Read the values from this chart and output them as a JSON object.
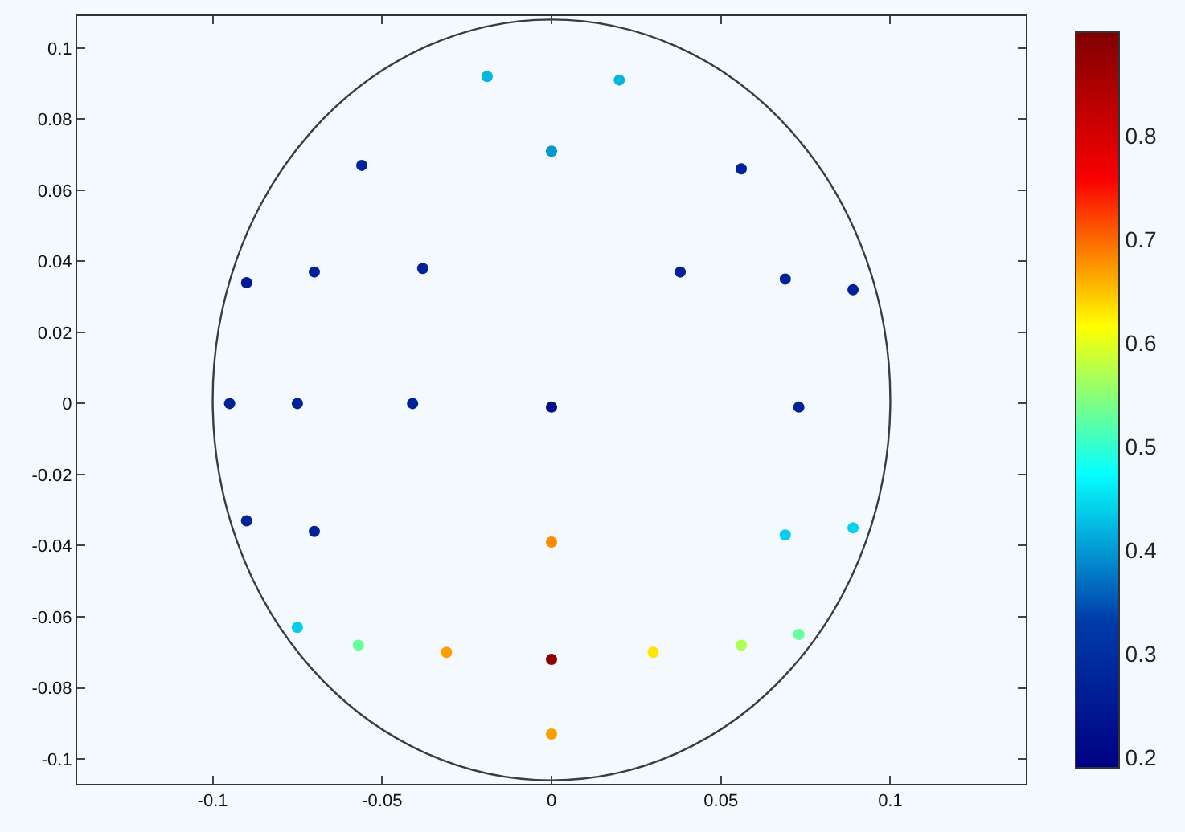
{
  "chart_data": {
    "type": "scatter",
    "xlim": [
      -0.14,
      0.14
    ],
    "ylim": [
      -0.107,
      0.109
    ],
    "xticks": [
      -0.1,
      -0.05,
      0,
      0.05,
      0.1
    ],
    "yticks": [
      -0.1,
      -0.08,
      -0.06,
      -0.04,
      -0.02,
      0,
      0.02,
      0.04,
      0.06,
      0.08,
      0.1
    ],
    "grid": false,
    "marker": "circle",
    "clim": [
      0.19,
      0.9
    ],
    "cticks": [
      0.2,
      0.3,
      0.4,
      0.5,
      0.6,
      0.7,
      0.8
    ],
    "series": [
      {
        "x": [
          -0.019,
          0.02,
          0,
          -0.056,
          0.056,
          -0.09,
          -0.07,
          -0.038,
          0.038,
          0.069,
          0.089,
          -0.095,
          -0.075,
          -0.041,
          0,
          0.073,
          -0.09,
          -0.07,
          0,
          0.069,
          0.089,
          -0.075,
          -0.057,
          -0.031,
          0,
          0.03,
          0.056,
          0.073,
          0
        ],
        "values": [
          0.092,
          0.091,
          0.071,
          0.067,
          0.066,
          0.034,
          0.037,
          0.038,
          0.037,
          0.035,
          0.032,
          0,
          0,
          0,
          -0.001,
          -0.001,
          -0.033,
          -0.036,
          -0.039,
          -0.037,
          -0.035,
          -0.063,
          -0.068,
          -0.07,
          -0.072,
          -0.07,
          -0.068,
          -0.065,
          -0.093
        ],
        "cvalues": [
          0.42,
          0.42,
          0.4,
          0.28,
          0.27,
          0.25,
          0.27,
          0.27,
          0.27,
          0.27,
          0.27,
          0.27,
          0.27,
          0.27,
          0.22,
          0.27,
          0.27,
          0.27,
          0.68,
          0.44,
          0.44,
          0.44,
          0.53,
          0.67,
          0.88,
          0.63,
          0.57,
          0.53,
          0.67
        ]
      }
    ]
  }
}
